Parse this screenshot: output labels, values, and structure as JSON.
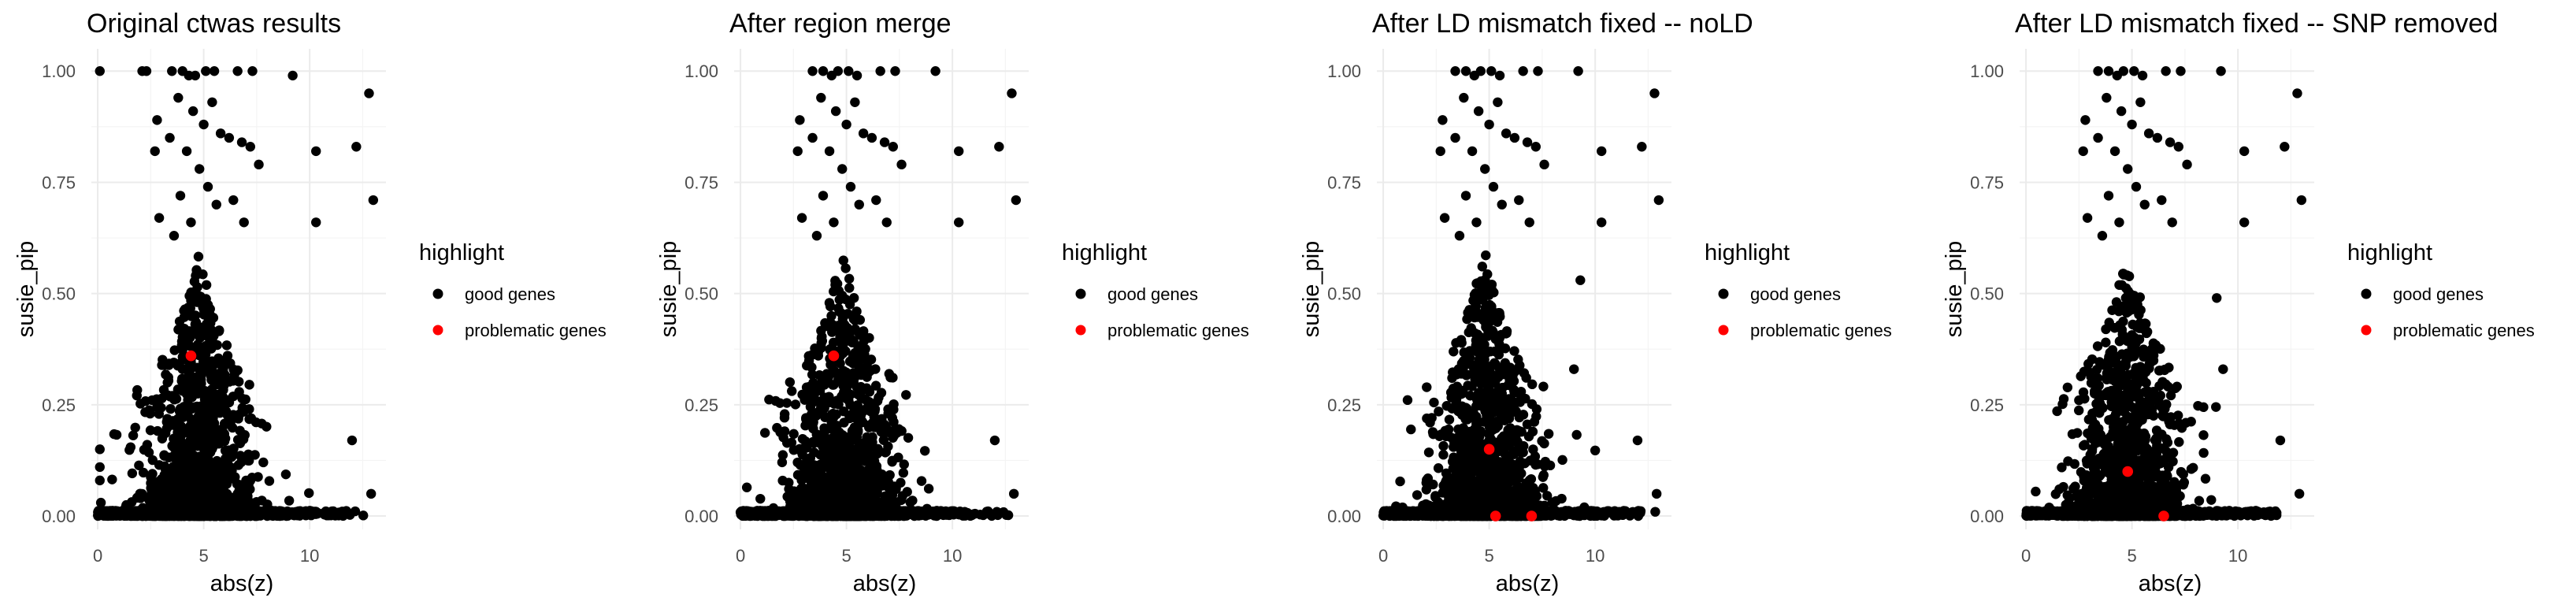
{
  "chart_data": [
    {
      "type": "scatter",
      "title": "Original ctwas results",
      "xlabel": "abs(z)",
      "ylabel": "susie_pip",
      "xlim": [
        -0.3,
        13.6
      ],
      "ylim": [
        -0.03,
        1.05
      ],
      "xticks": [
        "0",
        "5",
        "10"
      ],
      "yticks": [
        "0.00",
        "0.25",
        "0.50",
        "0.75",
        "1.00"
      ],
      "legend": {
        "title": "highlight",
        "position": "right",
        "entries": [
          {
            "label": "good genes",
            "color": "#000000"
          },
          {
            "label": "problematic genes",
            "color": "#ff0000"
          }
        ]
      },
      "series": [
        {
          "name": "good genes",
          "color": "#000000",
          "points": [
            [
              0.1,
              1.0
            ],
            [
              2.1,
              1.0
            ],
            [
              2.3,
              1.0
            ],
            [
              3.5,
              1.0
            ],
            [
              4.0,
              1.0
            ],
            [
              4.3,
              0.99
            ],
            [
              4.6,
              0.99
            ],
            [
              5.1,
              1.0
            ],
            [
              5.5,
              1.0
            ],
            [
              6.6,
              1.0
            ],
            [
              7.3,
              1.0
            ],
            [
              9.2,
              0.99
            ],
            [
              12.8,
              0.95
            ],
            [
              13.0,
              0.71
            ],
            [
              10.3,
              0.82
            ],
            [
              12.2,
              0.83
            ],
            [
              10.3,
              0.66
            ],
            [
              2.8,
              0.89
            ],
            [
              2.7,
              0.82
            ],
            [
              2.9,
              0.67
            ],
            [
              3.4,
              0.85
            ],
            [
              3.8,
              0.94
            ],
            [
              4.5,
              0.91
            ],
            [
              5.0,
              0.88
            ],
            [
              5.4,
              0.93
            ],
            [
              5.8,
              0.86
            ],
            [
              6.2,
              0.85
            ],
            [
              6.8,
              0.84
            ],
            [
              7.2,
              0.83
            ],
            [
              7.6,
              0.79
            ],
            [
              4.2,
              0.82
            ],
            [
              4.8,
              0.78
            ],
            [
              5.2,
              0.74
            ],
            [
              5.6,
              0.7
            ],
            [
              6.4,
              0.71
            ],
            [
              6.9,
              0.66
            ],
            [
              4.4,
              0.66
            ],
            [
              3.6,
              0.63
            ],
            [
              3.9,
              0.72
            ],
            [
              0.1,
              0.15
            ],
            [
              0.1,
              0.11
            ],
            [
              0.1,
              0.08
            ],
            [
              0.15,
              0.03
            ],
            [
              12.0,
              0.17
            ],
            [
              12.9,
              0.05
            ]
          ],
          "cluster": {
            "center_x": 4.8,
            "spread_x": 1.4,
            "min_x": 0.3,
            "max_x": 12.5,
            "count": 1300,
            "max_y": 0.6
          },
          "baseline_range": [
            0.0,
            13.2
          ]
        },
        {
          "name": "problematic genes",
          "color": "#ff0000",
          "points": [
            [
              4.4,
              0.36
            ]
          ]
        }
      ]
    },
    {
      "type": "scatter",
      "title": "After region merge",
      "xlabel": "abs(z)",
      "ylabel": "susie_pip",
      "xlim": [
        -0.3,
        13.6
      ],
      "ylim": [
        -0.03,
        1.05
      ],
      "xticks": [
        "0",
        "5",
        "10"
      ],
      "yticks": [
        "0.00",
        "0.25",
        "0.50",
        "0.75",
        "1.00"
      ],
      "legend": {
        "title": "highlight",
        "position": "right",
        "entries": [
          {
            "label": "good genes",
            "color": "#000000"
          },
          {
            "label": "problematic genes",
            "color": "#ff0000"
          }
        ]
      },
      "series": [
        {
          "name": "good genes",
          "color": "#000000",
          "points": [
            [
              3.4,
              1.0
            ],
            [
              3.9,
              1.0
            ],
            [
              4.3,
              0.99
            ],
            [
              4.6,
              1.0
            ],
            [
              5.1,
              1.0
            ],
            [
              5.5,
              0.99
            ],
            [
              6.6,
              1.0
            ],
            [
              7.3,
              1.0
            ],
            [
              9.2,
              1.0
            ],
            [
              12.8,
              0.95
            ],
            [
              13.0,
              0.71
            ],
            [
              10.3,
              0.82
            ],
            [
              12.2,
              0.83
            ],
            [
              10.3,
              0.66
            ],
            [
              2.8,
              0.89
            ],
            [
              2.7,
              0.82
            ],
            [
              2.9,
              0.67
            ],
            [
              3.4,
              0.85
            ],
            [
              3.8,
              0.94
            ],
            [
              4.5,
              0.91
            ],
            [
              5.0,
              0.88
            ],
            [
              5.4,
              0.93
            ],
            [
              5.8,
              0.86
            ],
            [
              6.2,
              0.85
            ],
            [
              6.8,
              0.84
            ],
            [
              7.2,
              0.83
            ],
            [
              7.6,
              0.79
            ],
            [
              4.2,
              0.82
            ],
            [
              4.8,
              0.78
            ],
            [
              5.2,
              0.74
            ],
            [
              5.6,
              0.7
            ],
            [
              6.4,
              0.71
            ],
            [
              6.9,
              0.66
            ],
            [
              4.4,
              0.66
            ],
            [
              3.6,
              0.63
            ],
            [
              3.9,
              0.72
            ],
            [
              12.0,
              0.17
            ],
            [
              12.9,
              0.05
            ]
          ],
          "cluster": {
            "center_x": 4.8,
            "spread_x": 1.4,
            "min_x": 0.3,
            "max_x": 12.5,
            "count": 1300,
            "max_y": 0.6
          },
          "baseline_range": [
            0.0,
            13.2
          ]
        },
        {
          "name": "problematic genes",
          "color": "#ff0000",
          "points": [
            [
              4.4,
              0.36
            ]
          ]
        }
      ]
    },
    {
      "type": "scatter",
      "title": "After LD mismatch fixed -- noLD",
      "xlabel": "abs(z)",
      "ylabel": "susie_pip",
      "xlim": [
        -0.3,
        13.6
      ],
      "ylim": [
        -0.03,
        1.05
      ],
      "xticks": [
        "0",
        "5",
        "10"
      ],
      "yticks": [
        "0.00",
        "0.25",
        "0.50",
        "0.75",
        "1.00"
      ],
      "legend": {
        "title": "highlight",
        "position": "right",
        "entries": [
          {
            "label": "good genes",
            "color": "#000000"
          },
          {
            "label": "problematic genes",
            "color": "#ff0000"
          }
        ]
      },
      "series": [
        {
          "name": "good genes",
          "color": "#000000",
          "points": [
            [
              3.4,
              1.0
            ],
            [
              3.9,
              1.0
            ],
            [
              4.3,
              0.99
            ],
            [
              4.6,
              1.0
            ],
            [
              5.1,
              1.0
            ],
            [
              5.5,
              0.99
            ],
            [
              6.6,
              1.0
            ],
            [
              7.3,
              1.0
            ],
            [
              9.2,
              1.0
            ],
            [
              12.8,
              0.95
            ],
            [
              13.0,
              0.71
            ],
            [
              10.3,
              0.82
            ],
            [
              12.2,
              0.83
            ],
            [
              10.3,
              0.66
            ],
            [
              2.8,
              0.89
            ],
            [
              2.7,
              0.82
            ],
            [
              2.9,
              0.67
            ],
            [
              3.4,
              0.85
            ],
            [
              3.8,
              0.94
            ],
            [
              4.5,
              0.91
            ],
            [
              5.0,
              0.88
            ],
            [
              5.4,
              0.93
            ],
            [
              5.8,
              0.86
            ],
            [
              6.2,
              0.85
            ],
            [
              6.8,
              0.84
            ],
            [
              7.2,
              0.83
            ],
            [
              7.6,
              0.79
            ],
            [
              4.2,
              0.82
            ],
            [
              4.8,
              0.78
            ],
            [
              5.2,
              0.74
            ],
            [
              5.6,
              0.7
            ],
            [
              6.4,
              0.71
            ],
            [
              6.9,
              0.66
            ],
            [
              4.4,
              0.66
            ],
            [
              3.6,
              0.63
            ],
            [
              3.9,
              0.72
            ],
            [
              9.3,
              0.53
            ],
            [
              9.0,
              0.33
            ],
            [
              12.0,
              0.17
            ],
            [
              12.9,
              0.05
            ]
          ],
          "cluster": {
            "center_x": 4.8,
            "spread_x": 1.4,
            "min_x": 0.3,
            "max_x": 12.5,
            "count": 1300,
            "max_y": 0.6
          },
          "baseline_range": [
            0.0,
            13.2
          ]
        },
        {
          "name": "problematic genes",
          "color": "#ff0000",
          "points": [
            [
              5.0,
              0.15
            ],
            [
              5.3,
              0.0
            ],
            [
              7.0,
              0.0
            ]
          ]
        }
      ]
    },
    {
      "type": "scatter",
      "title": "After LD mismatch fixed -- SNP removed",
      "xlabel": "abs(z)",
      "ylabel": "susie_pip",
      "xlim": [
        -0.3,
        13.6
      ],
      "ylim": [
        -0.03,
        1.05
      ],
      "xticks": [
        "0",
        "5",
        "10"
      ],
      "yticks": [
        "0.00",
        "0.25",
        "0.50",
        "0.75",
        "1.00"
      ],
      "legend": {
        "title": "highlight",
        "position": "right",
        "entries": [
          {
            "label": "good genes",
            "color": "#000000"
          },
          {
            "label": "problematic genes",
            "color": "#ff0000"
          }
        ]
      },
      "series": [
        {
          "name": "good genes",
          "color": "#000000",
          "points": [
            [
              3.4,
              1.0
            ],
            [
              3.9,
              1.0
            ],
            [
              4.3,
              0.99
            ],
            [
              4.6,
              1.0
            ],
            [
              5.1,
              1.0
            ],
            [
              5.5,
              0.99
            ],
            [
              6.6,
              1.0
            ],
            [
              7.3,
              1.0
            ],
            [
              9.2,
              1.0
            ],
            [
              12.8,
              0.95
            ],
            [
              13.0,
              0.71
            ],
            [
              10.3,
              0.82
            ],
            [
              12.2,
              0.83
            ],
            [
              10.3,
              0.66
            ],
            [
              2.8,
              0.89
            ],
            [
              2.7,
              0.82
            ],
            [
              2.9,
              0.67
            ],
            [
              3.4,
              0.85
            ],
            [
              3.8,
              0.94
            ],
            [
              4.5,
              0.91
            ],
            [
              5.0,
              0.88
            ],
            [
              5.4,
              0.93
            ],
            [
              5.8,
              0.86
            ],
            [
              6.2,
              0.85
            ],
            [
              6.8,
              0.84
            ],
            [
              7.2,
              0.83
            ],
            [
              7.6,
              0.79
            ],
            [
              4.2,
              0.82
            ],
            [
              4.8,
              0.78
            ],
            [
              5.2,
              0.74
            ],
            [
              5.6,
              0.7
            ],
            [
              6.4,
              0.71
            ],
            [
              6.9,
              0.66
            ],
            [
              4.4,
              0.66
            ],
            [
              3.6,
              0.63
            ],
            [
              3.9,
              0.72
            ],
            [
              9.0,
              0.49
            ],
            [
              9.3,
              0.33
            ],
            [
              12.0,
              0.17
            ],
            [
              12.9,
              0.05
            ]
          ],
          "cluster": {
            "center_x": 4.8,
            "spread_x": 1.4,
            "min_x": 0.3,
            "max_x": 12.5,
            "count": 1300,
            "max_y": 0.6
          },
          "baseline_range": [
            0.0,
            13.2
          ]
        },
        {
          "name": "problematic genes",
          "color": "#ff0000",
          "points": [
            [
              4.8,
              0.1
            ],
            [
              6.5,
              0.0
            ]
          ]
        }
      ]
    }
  ]
}
